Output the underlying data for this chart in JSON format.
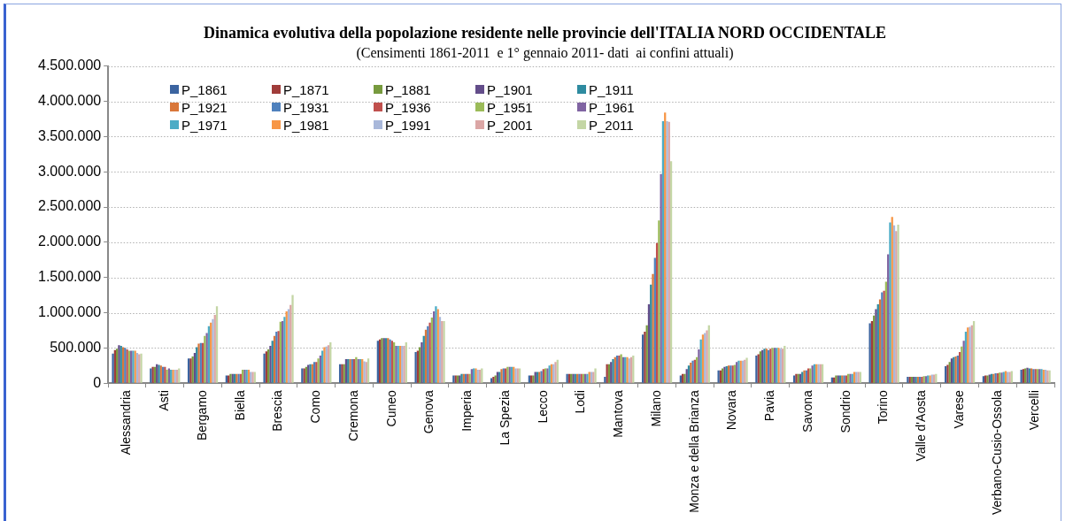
{
  "chart_data": {
    "type": "bar",
    "title": "Dinamica evolutiva della popolazione residente nelle provincie dell'ITALIA NORD OCCIDENTALE",
    "subtitle": "(Censimenti 1861-2011  e 1° gennaio 2011- dati  ai confini attuali)",
    "categories": [
      "Alessandria",
      "Asti",
      "Bergamo",
      "Biella",
      "Brescia",
      "Como",
      "Cremona",
      "Cuneo",
      "Genova",
      "Imperia",
      "La Spezia",
      "Lecco",
      "Lodi",
      "Mantova",
      "Milano",
      "Monza e della Brianza",
      "Novara",
      "Pavia",
      "Savona",
      "Sondrio",
      "Torino",
      "Valle d'Aosta",
      "Varese",
      "Verbano-Cusio-Ossola",
      "Vercelli"
    ],
    "series": [
      {
        "name": "P_1861",
        "color": "#3b64a0",
        "values": [
          420000,
          210000,
          350000,
          110000,
          420000,
          210000,
          270000,
          600000,
          440000,
          110000,
          70000,
          110000,
          130000,
          90000,
          690000,
          110000,
          180000,
          390000,
          110000,
          80000,
          850000,
          90000,
          240000,
          100000,
          190000
        ]
      },
      {
        "name": "P_1871",
        "color": "#a03c3a",
        "values": [
          470000,
          230000,
          350000,
          110000,
          450000,
          210000,
          270000,
          620000,
          460000,
          110000,
          90000,
          110000,
          130000,
          270000,
          730000,
          130000,
          180000,
          410000,
          130000,
          80000,
          880000,
          90000,
          260000,
          110000,
          200000
        ]
      },
      {
        "name": "P_1881",
        "color": "#779a3e",
        "values": [
          490000,
          230000,
          380000,
          130000,
          480000,
          230000,
          270000,
          640000,
          510000,
          110000,
          110000,
          110000,
          130000,
          270000,
          820000,
          130000,
          210000,
          450000,
          130000,
          110000,
          960000,
          90000,
          300000,
          110000,
          210000
        ]
      },
      {
        "name": "P_1901",
        "color": "#634d8a",
        "values": [
          540000,
          270000,
          430000,
          130000,
          530000,
          260000,
          340000,
          640000,
          580000,
          110000,
          160000,
          160000,
          130000,
          300000,
          1120000,
          200000,
          230000,
          470000,
          130000,
          110000,
          1050000,
          90000,
          350000,
          120000,
          220000
        ]
      },
      {
        "name": "P_1911",
        "color": "#2e8ba0",
        "values": [
          530000,
          260000,
          510000,
          130000,
          600000,
          270000,
          340000,
          640000,
          670000,
          130000,
          160000,
          160000,
          130000,
          340000,
          1400000,
          250000,
          240000,
          490000,
          160000,
          110000,
          1120000,
          90000,
          370000,
          130000,
          210000
        ]
      },
      {
        "name": "P_1921",
        "color": "#d9773a",
        "values": [
          510000,
          250000,
          560000,
          130000,
          670000,
          270000,
          340000,
          640000,
          760000,
          130000,
          200000,
          160000,
          130000,
          370000,
          1550000,
          290000,
          250000,
          490000,
          180000,
          110000,
          1190000,
          90000,
          380000,
          130000,
          210000
        ]
      },
      {
        "name": "P_1931",
        "color": "#4f81bd",
        "values": [
          500000,
          230000,
          570000,
          130000,
          730000,
          300000,
          340000,
          620000,
          810000,
          130000,
          210000,
          170000,
          130000,
          390000,
          1780000,
          320000,
          250000,
          470000,
          180000,
          110000,
          1290000,
          90000,
          390000,
          140000,
          200000
        ]
      },
      {
        "name": "P_1936",
        "color": "#c0504d",
        "values": [
          480000,
          230000,
          570000,
          130000,
          740000,
          300000,
          340000,
          600000,
          860000,
          130000,
          210000,
          200000,
          130000,
          390000,
          1990000,
          330000,
          250000,
          490000,
          210000,
          110000,
          1310000,
          90000,
          440000,
          140000,
          200000
        ]
      },
      {
        "name": "P_1951",
        "color": "#9bbb59",
        "values": [
          460000,
          190000,
          670000,
          190000,
          870000,
          350000,
          370000,
          580000,
          930000,
          130000,
          230000,
          210000,
          130000,
          410000,
          2310000,
          370000,
          260000,
          500000,
          210000,
          130000,
          1440000,
          100000,
          520000,
          150000,
          200000
        ]
      },
      {
        "name": "P_1961",
        "color": "#8064a2",
        "values": [
          460000,
          210000,
          710000,
          190000,
          880000,
          390000,
          340000,
          530000,
          1020000,
          200000,
          230000,
          210000,
          130000,
          370000,
          2970000,
          480000,
          300000,
          500000,
          250000,
          130000,
          1830000,
          100000,
          600000,
          150000,
          200000
        ]
      },
      {
        "name": "P_1971",
        "color": "#4bacc6",
        "values": [
          460000,
          190000,
          810000,
          190000,
          940000,
          460000,
          340000,
          530000,
          1090000,
          210000,
          230000,
          250000,
          130000,
          370000,
          3720000,
          620000,
          320000,
          500000,
          270000,
          130000,
          2280000,
          110000,
          730000,
          160000,
          200000
        ]
      },
      {
        "name": "P_1981",
        "color": "#f79646",
        "values": [
          460000,
          190000,
          860000,
          190000,
          1020000,
          510000,
          340000,
          530000,
          1050000,
          210000,
          230000,
          270000,
          160000,
          370000,
          3840000,
          690000,
          320000,
          500000,
          270000,
          160000,
          2360000,
          110000,
          790000,
          170000,
          190000
        ]
      },
      {
        "name": "P_1991",
        "color": "#a9b8da",
        "values": [
          430000,
          190000,
          910000,
          160000,
          1050000,
          520000,
          310000,
          530000,
          940000,
          190000,
          210000,
          270000,
          160000,
          350000,
          3720000,
          710000,
          320000,
          490000,
          270000,
          160000,
          2240000,
          120000,
          800000,
          160000,
          190000
        ]
      },
      {
        "name": "P_2001",
        "color": "#dba6a5",
        "values": [
          410000,
          190000,
          970000,
          160000,
          1110000,
          540000,
          300000,
          530000,
          880000,
          190000,
          210000,
          300000,
          160000,
          370000,
          3710000,
          750000,
          330000,
          490000,
          270000,
          160000,
          2160000,
          120000,
          820000,
          160000,
          180000
        ]
      },
      {
        "name": "P_2011",
        "color": "#c4d6a5",
        "values": [
          420000,
          210000,
          1090000,
          160000,
          1250000,
          580000,
          350000,
          580000,
          880000,
          210000,
          210000,
          330000,
          210000,
          390000,
          3150000,
          820000,
          360000,
          530000,
          270000,
          160000,
          2250000,
          130000,
          880000,
          170000,
          180000
        ]
      }
    ],
    "ylim": [
      0,
      4500000
    ],
    "yticks": [
      {
        "value": 0,
        "label": "0"
      },
      {
        "value": 500000,
        "label": "500.000"
      },
      {
        "value": 1000000,
        "label": "1.000.000"
      },
      {
        "value": 1500000,
        "label": "1.500.000"
      },
      {
        "value": 2000000,
        "label": "2.000.000"
      },
      {
        "value": 2500000,
        "label": "2.500.000"
      },
      {
        "value": 3000000,
        "label": "3.000.000"
      },
      {
        "value": 3500000,
        "label": "3.500.000"
      },
      {
        "value": 4000000,
        "label": "4.000.000"
      },
      {
        "value": 4500000,
        "label": "4.500.000"
      }
    ],
    "grid": "y",
    "legend": "top left"
  }
}
